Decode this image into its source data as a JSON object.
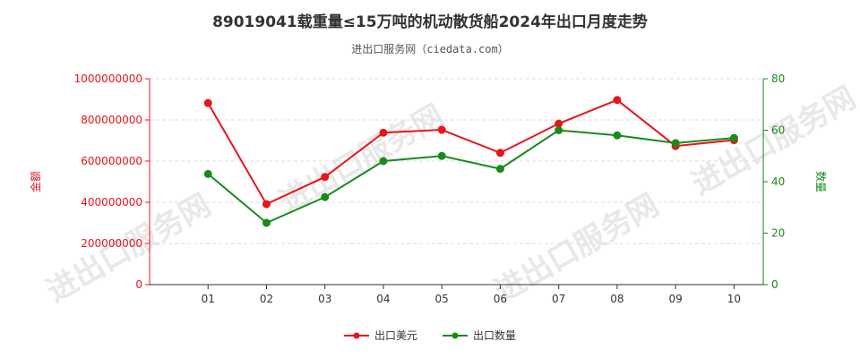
{
  "chart_data": {
    "type": "line",
    "title": "89019041载重量≤15万吨的机动散货船2024年出口月度走势",
    "subtitle": "进出口服务网（ciedata.com）",
    "watermark": "进出口服务网",
    "categories": [
      "01",
      "02",
      "03",
      "04",
      "05",
      "06",
      "07",
      "08",
      "09",
      "10"
    ],
    "y_left": {
      "label": "金额",
      "range": [
        0,
        1000000000
      ],
      "ticks": [
        "0",
        "200000000",
        "400000000",
        "600000000",
        "800000000",
        "1000000000"
      ],
      "color": "#e8151b"
    },
    "y_right": {
      "label": "数量",
      "range": [
        0,
        80
      ],
      "ticks": [
        "0",
        "20",
        "40",
        "60",
        "80"
      ],
      "color": "#1a8a1a"
    },
    "series": [
      {
        "name": "出口美元",
        "axis": "left",
        "color": "#e8151b",
        "values": [
          882000000,
          391000000,
          523000000,
          738000000,
          752000000,
          640000000,
          782000000,
          897000000,
          673000000,
          702000000
        ]
      },
      {
        "name": "出口数量",
        "axis": "right",
        "color": "#1a8a1a",
        "values": [
          43,
          24,
          34,
          48,
          50,
          45,
          60,
          58,
          55,
          57
        ]
      }
    ],
    "grid": true,
    "legend_position": "bottom"
  }
}
